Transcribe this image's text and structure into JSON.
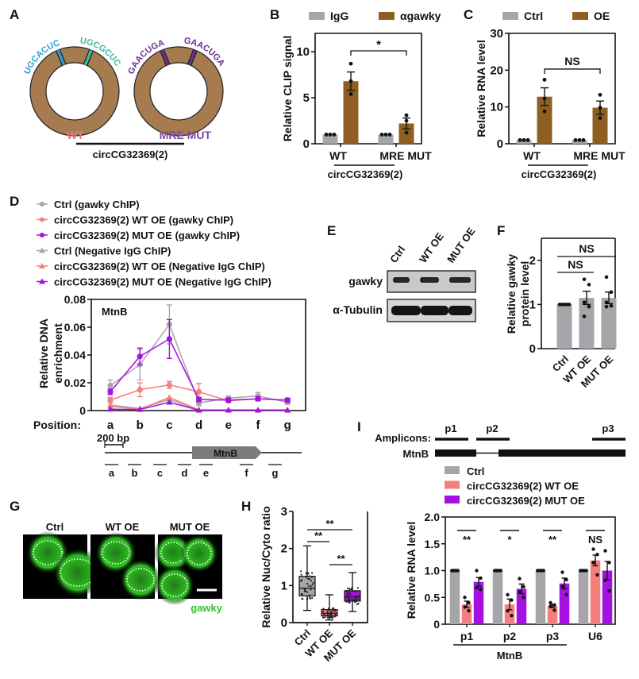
{
  "colors": {
    "gray": "#a6a5aa",
    "brown": "#8f5f22",
    "ring": "#a67b4f",
    "pink": "#f57f7c",
    "purple": "#a411e0",
    "blue": "#2a9fd8",
    "teal": "#43b79a",
    "violet": "#6b2f93",
    "wt_label": "#e57a80",
    "mut_label": "#7b4a9f",
    "green": "#34c12a"
  },
  "panels": {
    "A": {
      "letter": "A",
      "wt_seq1": "UGCACUC",
      "wt_seq2": "UGCGCUC",
      "mut_seq1": "GAACUGA",
      "mut_seq2": "GAACUGA",
      "wt_label": "WT",
      "mut_label": "MRE MUT",
      "group_label": "circCG32369(2)"
    },
    "E": {
      "letter": "E",
      "lanes": [
        "Ctrl",
        "WT OE",
        "MUT OE"
      ],
      "rows": [
        "gawky",
        "α-Tubulin"
      ]
    },
    "G": {
      "letter": "G",
      "images": [
        "Ctrl",
        "WT OE",
        "MUT OE"
      ],
      "stain_label": "gawky"
    },
    "I_schematic": {
      "letter": "I",
      "amplicons_label": "Amplicons:",
      "gene_label": "MtnB",
      "amplicons": [
        "p1",
        "p2",
        "p3"
      ]
    },
    "D_schematic": {
      "scale_label": "200 bp",
      "gene_label": "MtnB",
      "positions": [
        "a",
        "b",
        "c",
        "d",
        "e",
        "f",
        "g"
      ]
    }
  },
  "chart_data": [
    {
      "id": "B",
      "type": "bar",
      "title": "",
      "letter": "B",
      "ylabel": "Relative CLIP signal",
      "ylim": [
        0,
        12
      ],
      "yticks": [
        0,
        5,
        10
      ],
      "categories": [
        "WT",
        "MRE MUT"
      ],
      "group_label": "circCG32369(2)",
      "legend": [
        "IgG",
        "αgawky"
      ],
      "legend_position": "top",
      "series": [
        {
          "name": "IgG",
          "values": [
            1,
            1
          ],
          "errors": [
            0,
            0
          ],
          "points": [
            [
              1,
              1,
              1
            ],
            [
              1,
              1,
              1
            ]
          ]
        },
        {
          "name": "αgawky",
          "values": [
            6.8,
            2.2
          ],
          "errors": [
            1.0,
            0.6
          ],
          "points": [
            [
              8.7,
              6.8,
              5.4
            ],
            [
              3.1,
              2.5,
              1.2
            ]
          ]
        }
      ],
      "annotations": [
        {
          "text": "*",
          "from": "WT αgawky",
          "to": "MRE MUT αgawky"
        }
      ]
    },
    {
      "id": "C",
      "type": "bar",
      "letter": "C",
      "ylabel": "Relative RNA level",
      "ylim": [
        0,
        30
      ],
      "yticks": [
        0,
        10,
        20,
        30
      ],
      "categories": [
        "WT",
        "MRE MUT"
      ],
      "group_label": "circCG32369(2)",
      "legend": [
        "Ctrl",
        "OE"
      ],
      "legend_position": "top",
      "series": [
        {
          "name": "Ctrl",
          "values": [
            1,
            1
          ],
          "errors": [
            0,
            0
          ],
          "points": [
            [
              1,
              1,
              1
            ],
            [
              1,
              1,
              1
            ]
          ]
        },
        {
          "name": "OE",
          "values": [
            12.8,
            9.8
          ],
          "errors": [
            2.4,
            1.8
          ],
          "points": [
            [
              17.4,
              12.3,
              8.8
            ],
            [
              13.3,
              9.8,
              7.0
            ]
          ]
        }
      ],
      "annotations": [
        {
          "text": "NS",
          "from": "WT OE",
          "to": "MRE MUT OE"
        }
      ]
    },
    {
      "id": "D",
      "type": "line",
      "letter": "D",
      "inset_label": "MtnB",
      "ylabel": "Relative DNA enrichment",
      "xlabel": "Position:",
      "x": [
        "a",
        "b",
        "c",
        "d",
        "e",
        "f",
        "g"
      ],
      "ylim": [
        0,
        0.08
      ],
      "yticks": [
        0,
        0.02,
        0.04,
        0.06,
        0.08
      ],
      "ytick_labels": [
        "0",
        "0.02",
        "0.04",
        "0.06",
        "0.08"
      ],
      "legend_position": "top",
      "series": [
        {
          "name": "Ctrl (gawky ChIP)",
          "marker": "circle",
          "color": "gray",
          "values": [
            0.018,
            0.033,
            0.062,
            0.0055,
            0.009,
            0.0105,
            0.006
          ],
          "errors": [
            0.004,
            0.011,
            0.014,
            0.002,
            0.0015,
            0.0025,
            0.0015
          ]
        },
        {
          "name": "circCG32369(2) WT OE (gawky ChIP)",
          "marker": "circle",
          "color": "pink",
          "values": [
            0.0075,
            0.015,
            0.0185,
            0.0135,
            0.007,
            0.0085,
            0.0075
          ],
          "errors": [
            0.002,
            0.005,
            0.0025,
            0.006,
            0.001,
            0.0015,
            0.001
          ]
        },
        {
          "name": "circCG32369(2) MUT OE (gawky ChIP)",
          "marker": "circle",
          "color": "purple",
          "values": [
            0.0135,
            0.039,
            0.0515,
            0.008,
            0.0075,
            0.0085,
            0.0075
          ],
          "errors": [
            0.002,
            0.006,
            0.014,
            0.0015,
            0.0015,
            0.0015,
            0.0015
          ]
        },
        {
          "name": "Ctrl (Negative IgG ChIP)",
          "marker": "triangle",
          "color": "gray",
          "values": [
            0.004,
            0.0015,
            0.008,
            0.0005,
            0.0005,
            0.0005,
            0.0005
          ],
          "errors": [
            0,
            0,
            0,
            0,
            0,
            0,
            0
          ]
        },
        {
          "name": "circCG32369(2) WT OE (Negative IgG ChIP)",
          "marker": "triangle",
          "color": "pink",
          "values": [
            0.003,
            0.001,
            0.0095,
            0.0005,
            0.0005,
            0.0005,
            0.0005
          ],
          "errors": [
            0,
            0,
            0,
            0,
            0,
            0,
            0
          ]
        },
        {
          "name": "circCG32369(2) MUT OE (Negative IgG ChIP)",
          "marker": "triangle",
          "color": "purple",
          "values": [
            0.001,
            0.0008,
            0.006,
            0.0003,
            0.0003,
            0.0003,
            0.0003
          ],
          "errors": [
            0,
            0,
            0,
            0,
            0,
            0,
            0
          ]
        }
      ]
    },
    {
      "id": "F",
      "type": "bar",
      "letter": "F",
      "ylabel": "Relative gawky protein level",
      "ylim": [
        0,
        2.5
      ],
      "yticks": [
        0,
        1,
        2
      ],
      "categories": [
        "Ctrl",
        "WT OE",
        "MUT OE"
      ],
      "values": [
        1.0,
        1.15,
        1.15
      ],
      "errors": [
        0,
        0.15,
        0.13
      ],
      "points": [
        [
          1,
          1,
          1,
          1,
          1
        ],
        [
          1.57,
          1.45,
          1.05,
          0.95,
          0.73
        ],
        [
          1.62,
          1.28,
          1.05,
          0.97,
          0.95
        ]
      ],
      "annotations": [
        {
          "text": "NS",
          "from": "Ctrl",
          "to": "WT OE"
        },
        {
          "text": "NS",
          "from": "Ctrl",
          "to": "MUT OE"
        }
      ]
    },
    {
      "id": "H",
      "type": "box",
      "letter": "H",
      "ylabel": "Relative Nuc/Cyto ratio",
      "ylim": [
        0,
        3
      ],
      "yticks": [
        0,
        1,
        2,
        3
      ],
      "categories": [
        "Ctrl",
        "WT OE",
        "MUT OE"
      ],
      "boxes": [
        {
          "min": 0.33,
          "q1": 0.72,
          "median": 0.93,
          "q3": 1.25,
          "max": 2.07
        },
        {
          "min": 0.07,
          "q1": 0.18,
          "median": 0.25,
          "q3": 0.35,
          "max": 0.75
        },
        {
          "min": 0.3,
          "q1": 0.58,
          "median": 0.7,
          "q3": 0.86,
          "max": 1.35
        }
      ],
      "annotations": [
        {
          "text": "**",
          "from": "Ctrl",
          "to": "WT OE"
        },
        {
          "text": "**",
          "from": "Ctrl",
          "to": "MUT OE"
        },
        {
          "text": "**",
          "from": "WT OE",
          "to": "MUT OE"
        }
      ]
    },
    {
      "id": "I",
      "type": "bar",
      "letter": "I",
      "ylabel": "Relative RNA level",
      "ylim": [
        0,
        2.0
      ],
      "yticks": [
        0,
        0.5,
        1.0,
        1.5,
        2.0
      ],
      "ytick_labels": [
        "0",
        "0.5",
        "1.0",
        "1.5",
        "2.0"
      ],
      "categories": [
        "p1",
        "p2",
        "p3",
        "U6"
      ],
      "group_label": "MtnB",
      "legend": [
        "Ctrl",
        "circCG32369(2) WT OE",
        "circCG32369(2) MUT OE"
      ],
      "legend_position": "top",
      "series": [
        {
          "name": "Ctrl",
          "values": [
            1,
            1,
            1,
            1
          ],
          "errors": [
            0,
            0,
            0,
            0
          ],
          "points": [
            [
              1,
              1,
              1,
              1
            ],
            [
              1,
              1,
              1,
              1
            ],
            [
              1,
              1,
              1,
              1
            ],
            [
              1,
              1,
              1,
              1
            ]
          ]
        },
        {
          "name": "circCG32369(2) WT OE",
          "values": [
            0.37,
            0.37,
            0.34,
            1.19
          ],
          "errors": [
            0.06,
            0.1,
            0.03,
            0.1
          ],
          "points": [
            [
              0.5,
              0.4,
              0.32,
              0.25
            ],
            [
              0.55,
              0.45,
              0.25,
              0.16
            ],
            [
              0.4,
              0.36,
              0.33,
              0.26
            ],
            [
              1.4,
              1.3,
              1.15,
              0.92
            ]
          ]
        },
        {
          "name": "circCG32369(2) MUT OE",
          "values": [
            0.79,
            0.66,
            0.76,
            1.0
          ],
          "errors": [
            0.08,
            0.09,
            0.1,
            0.17
          ],
          "points": [
            [
              1.0,
              0.86,
              0.68,
              0.65
            ],
            [
              0.85,
              0.7,
              0.6,
              0.5
            ],
            [
              0.97,
              0.83,
              0.7,
              0.55
            ],
            [
              1.37,
              1.15,
              0.82,
              0.62
            ]
          ]
        }
      ],
      "annotations": [
        "**",
        "*",
        "**",
        "NS"
      ]
    }
  ]
}
